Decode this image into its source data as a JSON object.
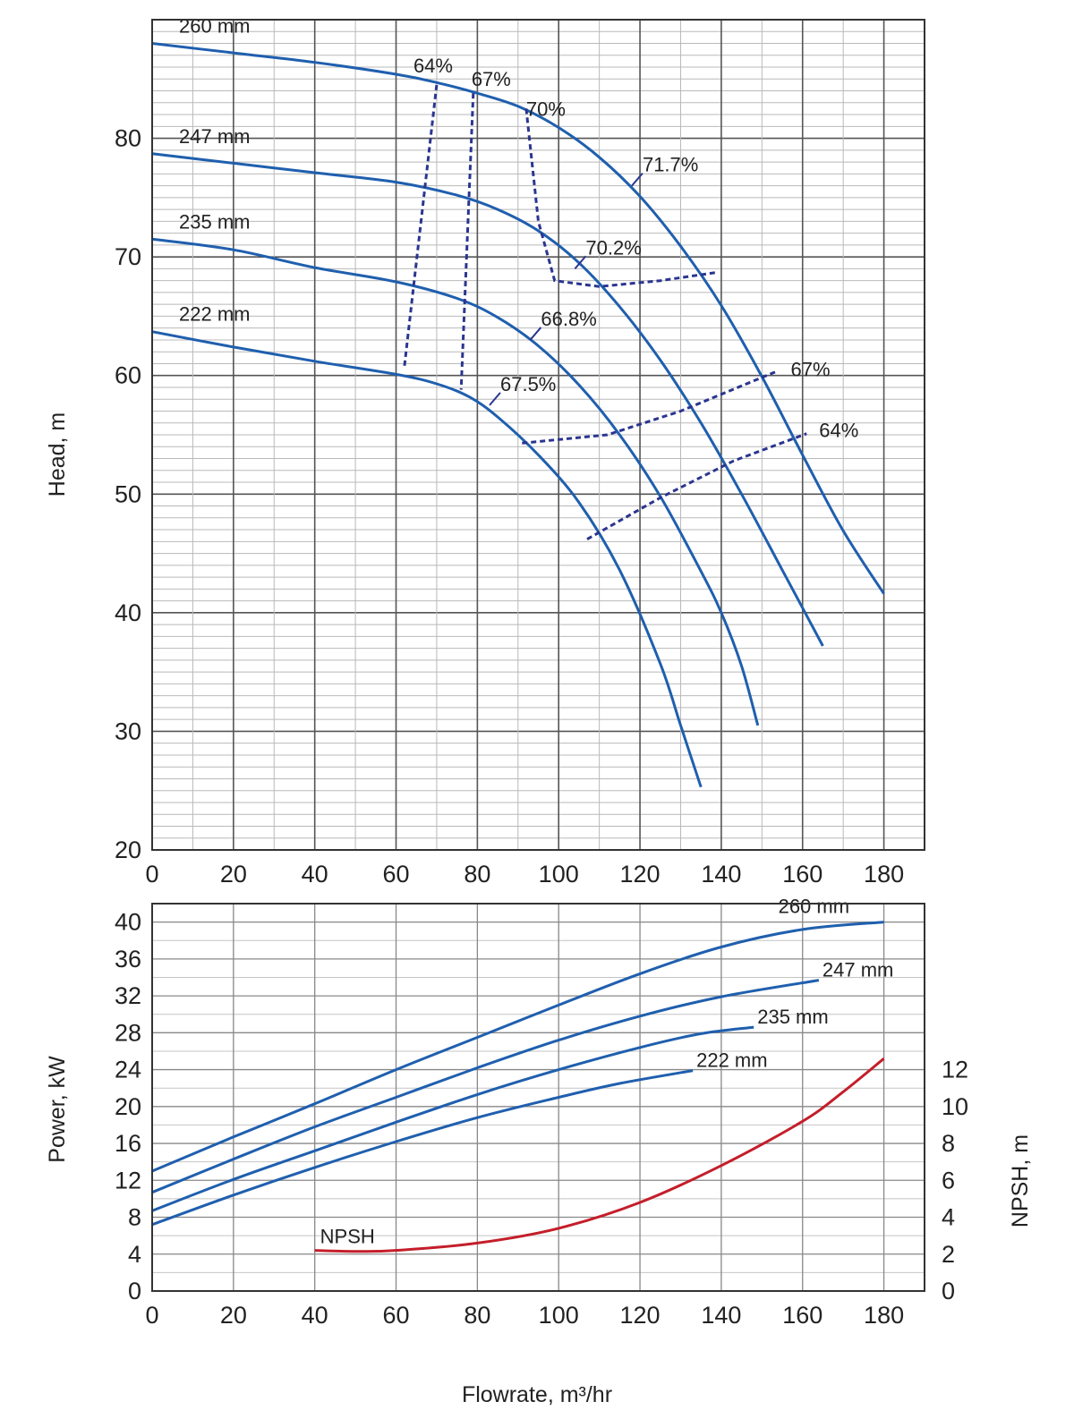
{
  "chart_data": [
    {
      "type": "line",
      "title": "",
      "xlabel": "",
      "ylabel": "Head, m",
      "xlim": [
        0,
        190
      ],
      "ylim": [
        20,
        90
      ],
      "xticks": [
        "0",
        "20",
        "40",
        "60",
        "80",
        "100",
        "120",
        "140",
        "160",
        "180"
      ],
      "yticks": [
        "20",
        "30",
        "40",
        "50",
        "60",
        "70",
        "80"
      ],
      "grid": true,
      "colors": {
        "curve": "#1f5fae",
        "efficiency": "#2a3590"
      },
      "series": [
        {
          "name": "260 mm",
          "points": [
            [
              0,
              88
            ],
            [
              20,
              87.2
            ],
            [
              40,
              86.4
            ],
            [
              60,
              85.4
            ],
            [
              70,
              84.7
            ],
            [
              80,
              83.8
            ],
            [
              90,
              82.7
            ],
            [
              100,
              80.9
            ],
            [
              110,
              78.4
            ],
            [
              120,
              75.1
            ],
            [
              130,
              70.9
            ],
            [
              140,
              65.9
            ],
            [
              150,
              59.9
            ],
            [
              160,
              53.3
            ],
            [
              170,
              46.9
            ],
            [
              180,
              41.6
            ]
          ]
        },
        {
          "name": "247 mm",
          "points": [
            [
              0,
              78.7
            ],
            [
              20,
              77.9
            ],
            [
              40,
              77.1
            ],
            [
              60,
              76.3
            ],
            [
              75,
              75.2
            ],
            [
              85,
              74
            ],
            [
              95,
              72.2
            ],
            [
              105,
              69.5
            ],
            [
              115,
              65.8
            ],
            [
              125,
              61.3
            ],
            [
              135,
              56
            ],
            [
              145,
              50
            ],
            [
              155,
              43.6
            ],
            [
              165,
              37.2
            ]
          ]
        },
        {
          "name": "235 mm",
          "points": [
            [
              0,
              71.5
            ],
            [
              20,
              70.6
            ],
            [
              40,
              69.1
            ],
            [
              60,
              67.9
            ],
            [
              75,
              66.5
            ],
            [
              85,
              64.9
            ],
            [
              95,
              62.5
            ],
            [
              105,
              59.2
            ],
            [
              115,
              55
            ],
            [
              125,
              49.8
            ],
            [
              135,
              43.5
            ],
            [
              140,
              40
            ],
            [
              145,
              35.5
            ],
            [
              149,
              30.5
            ]
          ]
        },
        {
          "name": "222 mm",
          "points": [
            [
              0,
              63.7
            ],
            [
              20,
              62.4
            ],
            [
              40,
              61.2
            ],
            [
              60,
              60.1
            ],
            [
              70,
              59.3
            ],
            [
              78,
              58.2
            ],
            [
              85,
              56.5
            ],
            [
              95,
              53.3
            ],
            [
              105,
              49.3
            ],
            [
              115,
              43.6
            ],
            [
              125,
              35.7
            ],
            [
              130,
              30.5
            ],
            [
              135,
              25.3
            ]
          ]
        }
      ],
      "efficiency_lines": [
        {
          "label": "64%",
          "points": [
            [
              70,
              84.5
            ],
            [
              62,
              60.6
            ]
          ]
        },
        {
          "label": "67%",
          "points": [
            [
              79,
              83.8
            ],
            [
              76,
              58.8
            ]
          ]
        },
        {
          "label": "70%",
          "points": [
            [
              92,
              82.5
            ],
            [
              95,
              73
            ],
            [
              99,
              68
            ],
            [
              110,
              67.5
            ],
            [
              125,
              68
            ],
            [
              139,
              68.7
            ]
          ]
        },
        {
          "label": "67%",
          "points": [
            [
              91,
              54.3
            ],
            [
              112,
              55
            ],
            [
              130,
              57
            ],
            [
              154,
              60.4
            ]
          ]
        },
        {
          "label": "64%",
          "points": [
            [
              107,
              46.2
            ],
            [
              125,
              49.7
            ],
            [
              143,
              52.8
            ],
            [
              161,
              55.1
            ]
          ]
        }
      ],
      "efficiency_points": [
        {
          "label": "71.7%",
          "at": [
            118,
            76
          ]
        },
        {
          "label": "70.2%",
          "at": [
            104,
            69
          ]
        },
        {
          "label": "66.8%",
          "at": [
            93,
            63
          ]
        },
        {
          "label": "67.5%",
          "at": [
            83,
            57.5
          ]
        }
      ]
    },
    {
      "type": "line",
      "title": "",
      "xlabel": "Flowrate, m³/hr",
      "ylabel": "Power, kW",
      "y2label": "NPSH, m",
      "xlim": [
        0,
        190
      ],
      "ylim": [
        0,
        42
      ],
      "y2lim": [
        0,
        21
      ],
      "xticks": [
        "0",
        "20",
        "40",
        "60",
        "80",
        "100",
        "120",
        "140",
        "160",
        "180"
      ],
      "yticks": [
        "0",
        "4",
        "8",
        "12",
        "16",
        "20",
        "24",
        "28",
        "32",
        "36",
        "40"
      ],
      "y2ticks": [
        "0",
        "2",
        "4",
        "6",
        "8",
        "10",
        "12"
      ],
      "grid": true,
      "colors": {
        "power": "#1f5fae",
        "npsh": "#c41e2a"
      },
      "series": [
        {
          "name": "260 mm",
          "points": [
            [
              0,
              13
            ],
            [
              20,
              16.7
            ],
            [
              40,
              20.3
            ],
            [
              60,
              24
            ],
            [
              80,
              27.5
            ],
            [
              100,
              31
            ],
            [
              120,
              34.4
            ],
            [
              140,
              37.3
            ],
            [
              160,
              39.2
            ],
            [
              180,
              40
            ]
          ]
        },
        {
          "name": "247 mm",
          "points": [
            [
              0,
              10.7
            ],
            [
              20,
              14.3
            ],
            [
              40,
              17.8
            ],
            [
              60,
              21
            ],
            [
              80,
              24.2
            ],
            [
              100,
              27.2
            ],
            [
              120,
              29.8
            ],
            [
              140,
              31.9
            ],
            [
              164,
              33.7
            ]
          ]
        },
        {
          "name": "235 mm",
          "points": [
            [
              0,
              8.7
            ],
            [
              20,
              12.1
            ],
            [
              40,
              15.2
            ],
            [
              60,
              18.3
            ],
            [
              80,
              21.3
            ],
            [
              100,
              24
            ],
            [
              120,
              26.4
            ],
            [
              135,
              27.9
            ],
            [
              148,
              28.6
            ]
          ]
        },
        {
          "name": "222 mm",
          "points": [
            [
              0,
              7.2
            ],
            [
              20,
              10.4
            ],
            [
              40,
              13.4
            ],
            [
              60,
              16.2
            ],
            [
              80,
              18.8
            ],
            [
              100,
              21
            ],
            [
              115,
              22.5
            ],
            [
              133,
              23.9
            ]
          ]
        }
      ],
      "npsh": {
        "name": "NPSH",
        "points": [
          [
            40,
            2.2
          ],
          [
            50,
            2.15
          ],
          [
            60,
            2.2
          ],
          [
            80,
            2.6
          ],
          [
            100,
            3.4
          ],
          [
            120,
            4.8
          ],
          [
            140,
            6.8
          ],
          [
            160,
            9.2
          ],
          [
            170,
            10.8
          ],
          [
            180,
            12.6
          ]
        ]
      }
    }
  ]
}
